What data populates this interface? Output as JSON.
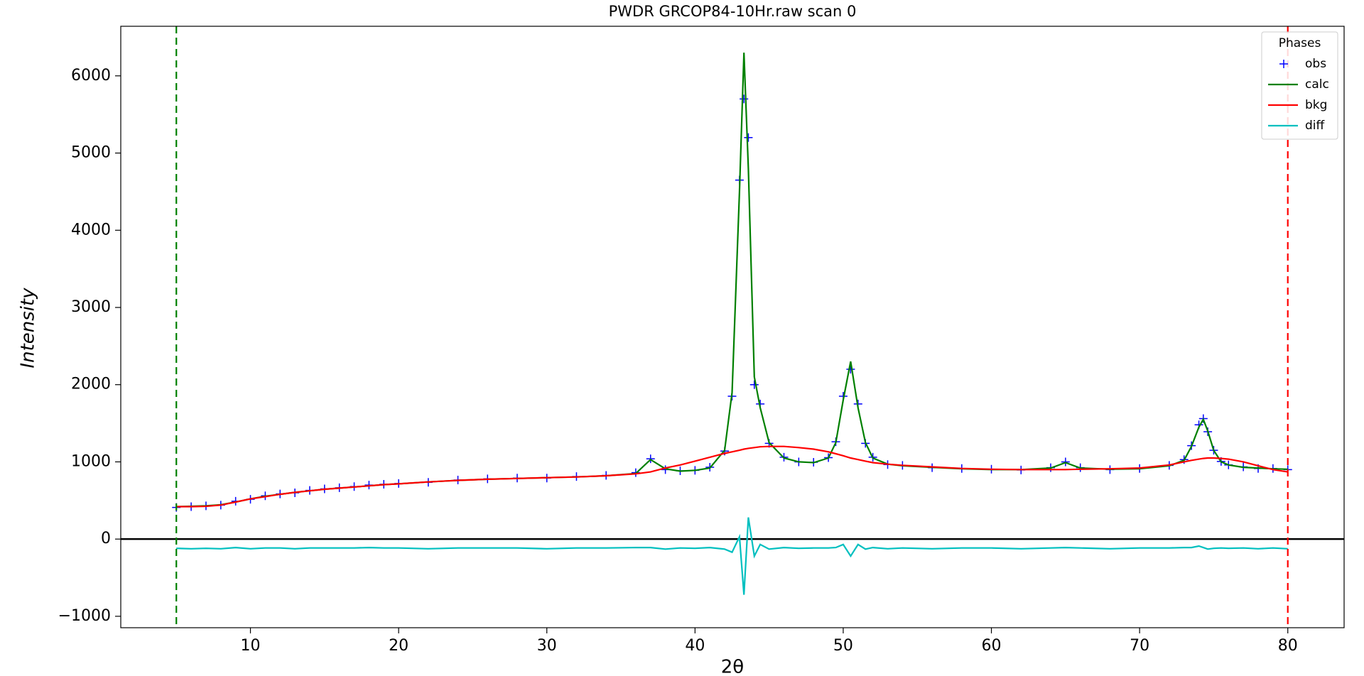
{
  "chart_data": {
    "type": "line",
    "title": "PWDR GRCOP84-10Hr.raw scan 0",
    "x_label": "2θ",
    "y_label": "Intensity",
    "legend_title": "Phases",
    "legend_position": "upper right",
    "x": [
      5,
      6,
      7,
      8,
      9,
      10,
      11,
      12,
      13,
      14,
      15,
      16,
      17,
      18,
      19,
      20,
      22,
      24,
      26,
      28,
      30,
      32,
      34,
      36,
      37,
      38,
      39,
      40,
      41,
      42,
      42.5,
      43,
      43.3,
      43.6,
      44,
      44.4,
      45,
      46,
      47,
      48,
      49,
      49.5,
      50,
      50.5,
      51,
      51.5,
      52,
      53,
      54,
      56,
      58,
      60,
      62,
      64,
      65,
      66,
      68,
      70,
      72,
      73,
      73.5,
      74,
      74.3,
      74.6,
      75,
      75.5,
      76,
      77,
      78,
      79,
      80
    ],
    "series": [
      {
        "name": "obs",
        "color": "#0000ff",
        "marker": "+",
        "values": [
          410,
          420,
          430,
          440,
          490,
          515,
          560,
          585,
          600,
          630,
          650,
          665,
          680,
          700,
          710,
          720,
          735,
          765,
          780,
          790,
          790,
          810,
          825,
          860,
          1040,
          900,
          885,
          890,
          930,
          1140,
          1850,
          4650,
          5700,
          5200,
          2000,
          1750,
          1240,
          1060,
          1000,
          995,
          1055,
          1260,
          1850,
          2200,
          1750,
          1240,
          1060,
          965,
          955,
          925,
          915,
          905,
          895,
          925,
          1000,
          925,
          900,
          915,
          955,
          1030,
          1210,
          1480,
          1560,
          1390,
          1150,
          1005,
          960,
          935,
          915,
          915,
          900
        ]
      },
      {
        "name": "calc",
        "color": "#008000",
        "values": [
          420,
          425,
          430,
          445,
          480,
          520,
          555,
          580,
          605,
          625,
          645,
          660,
          675,
          690,
          705,
          715,
          740,
          760,
          775,
          785,
          795,
          805,
          820,
          850,
          1030,
          910,
          880,
          890,
          920,
          1150,
          1900,
          4500,
          6300,
          4800,
          2100,
          1700,
          1250,
          1050,
          1000,
          990,
          1050,
          1250,
          1800,
          2300,
          1700,
          1250,
          1050,
          970,
          950,
          930,
          910,
          900,
          900,
          920,
          990,
          920,
          905,
          910,
          950,
          1020,
          1200,
          1450,
          1550,
          1400,
          1150,
          1000,
          960,
          930,
          920,
          910,
          905
        ]
      },
      {
        "name": "bkg",
        "color": "#ff0000",
        "values": [
          420,
          420,
          425,
          440,
          480,
          520,
          550,
          580,
          605,
          625,
          645,
          660,
          675,
          690,
          705,
          715,
          740,
          760,
          775,
          785,
          795,
          805,
          820,
          845,
          870,
          920,
          960,
          1010,
          1060,
          1110,
          1130,
          1150,
          1165,
          1175,
          1185,
          1195,
          1200,
          1200,
          1185,
          1165,
          1130,
          1105,
          1080,
          1050,
          1030,
          1010,
          990,
          970,
          955,
          935,
          915,
          905,
          900,
          900,
          900,
          905,
          910,
          920,
          960,
          1000,
          1020,
          1035,
          1045,
          1050,
          1050,
          1045,
          1035,
          1000,
          950,
          900,
          870
        ]
      },
      {
        "name": "diff",
        "color": "#00bfbf",
        "values": [
          -120,
          -125,
          -120,
          -125,
          -110,
          -125,
          -115,
          -115,
          -125,
          -115,
          -115,
          -115,
          -115,
          -110,
          -115,
          -115,
          -125,
          -115,
          -115,
          -115,
          -125,
          -115,
          -115,
          -110,
          -110,
          -130,
          -115,
          -120,
          -110,
          -130,
          -170,
          30,
          -720,
          280,
          -220,
          -70,
          -130,
          -110,
          -120,
          -115,
          -115,
          -110,
          -70,
          -220,
          -70,
          -130,
          -110,
          -125,
          -115,
          -125,
          -115,
          -115,
          -125,
          -115,
          -110,
          -115,
          -125,
          -115,
          -115,
          -110,
          -110,
          -90,
          -110,
          -130,
          -120,
          -115,
          -120,
          -115,
          -125,
          -115,
          -125
        ]
      }
    ],
    "limit_lines": [
      {
        "x": 5,
        "color": "#008000"
      },
      {
        "x": 80,
        "color": "#ff0000"
      }
    ],
    "xlim": [
      1.25,
      83.8
    ],
    "xticks": [
      10,
      20,
      30,
      40,
      50,
      60,
      70,
      80
    ],
    "ylim": [
      -1148,
      6642
    ],
    "yticks": [
      {
        "value": -1000,
        "label": "−1000"
      },
      0,
      1000,
      2000,
      3000,
      4000,
      5000,
      6000
    ]
  }
}
